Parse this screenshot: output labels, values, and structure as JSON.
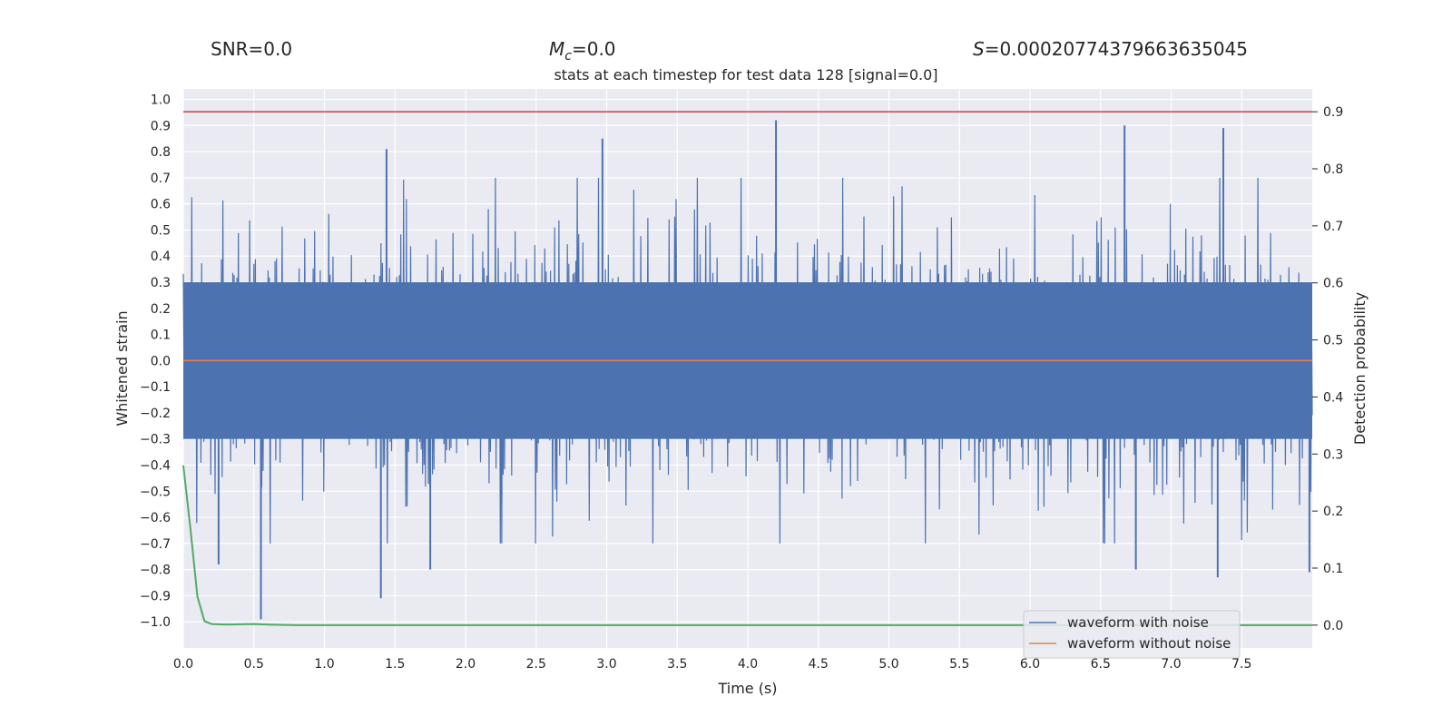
{
  "header": {
    "snr": "SNR=0.0",
    "mc_symbol": "M",
    "mc_subscript": "c",
    "mc_value": "=0.0",
    "s_symbol": "S",
    "s_value": "=0.00020774379663635045"
  },
  "chart_data": {
    "type": "line",
    "title": "stats at each timestep for test data 128 [signal=0.0]",
    "xlabel": "Time (s)",
    "ylabel": "Whitened strain",
    "y2label": "Detection probability",
    "xlim": [
      0.0,
      8.0
    ],
    "ylim": [
      -1.1,
      1.04
    ],
    "y2lim": [
      -0.04,
      0.94
    ],
    "x_ticks": [
      "0.0",
      "0.5",
      "1.0",
      "1.5",
      "2.0",
      "2.5",
      "3.0",
      "3.5",
      "4.0",
      "4.5",
      "5.0",
      "5.5",
      "6.0",
      "6.5",
      "7.0",
      "7.5"
    ],
    "y_ticks": [
      "1.0",
      "0.9",
      "0.8",
      "0.7",
      "0.6",
      "0.5",
      "0.4",
      "0.3",
      "0.2",
      "0.1",
      "0.0",
      "−0.1",
      "−0.2",
      "−0.3",
      "−0.4",
      "−0.5",
      "−0.6",
      "−0.7",
      "−0.8",
      "−0.9",
      "−1.0"
    ],
    "y2_ticks": [
      "0.9",
      "0.8",
      "0.7",
      "0.6",
      "0.5",
      "0.4",
      "0.3",
      "0.2",
      "0.1",
      "0.0"
    ],
    "threshold": {
      "value": 0.9,
      "axis": "right",
      "color": "#c44e52"
    },
    "series": [
      {
        "name": "waveform with noise",
        "axis": "left",
        "color": "#4c72b0",
        "kind": "noise",
        "typical_range": [
          -0.3,
          0.3
        ],
        "peaks": [
          {
            "x": 0.55,
            "y": -0.99
          },
          {
            "x": 1.4,
            "y": -0.91
          },
          {
            "x": 1.75,
            "y": -0.8
          },
          {
            "x": 1.44,
            "y": 0.81
          },
          {
            "x": 2.97,
            "y": 0.85
          },
          {
            "x": 4.2,
            "y": 0.92
          },
          {
            "x": 6.67,
            "y": 0.9
          },
          {
            "x": 7.37,
            "y": 0.89
          },
          {
            "x": 6.75,
            "y": -0.8
          },
          {
            "x": 7.33,
            "y": -0.83
          },
          {
            "x": 7.98,
            "y": -0.81
          },
          {
            "x": 0.25,
            "y": -0.78
          }
        ]
      },
      {
        "name": "waveform without noise",
        "axis": "left",
        "color": "#dd8452",
        "x": [
          0.0,
          8.0
        ],
        "y": [
          0.0,
          0.0
        ]
      },
      {
        "name": "detection probability",
        "axis": "right",
        "color": "#55a868",
        "x": [
          0.0,
          0.05,
          0.1,
          0.15,
          0.2,
          0.3,
          0.5,
          0.6,
          0.8,
          1.0,
          8.0
        ],
        "y": [
          0.28,
          0.17,
          0.05,
          0.007,
          0.002,
          0.001,
          0.002,
          0.001,
          0.0,
          0.0,
          0.0
        ]
      }
    ],
    "legend": {
      "position": "lower-right",
      "entries": [
        "waveform with noise",
        "waveform without noise"
      ]
    }
  }
}
